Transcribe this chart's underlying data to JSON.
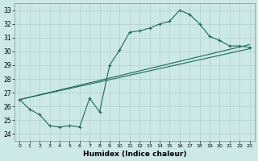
{
  "xlabel": "Humidex (Indice chaleur)",
  "bg_color": "#cce8e8",
  "grid_color": "#b0d0d0",
  "line_color": "#1a6b5a",
  "xlim": [
    -0.5,
    23.5
  ],
  "ylim": [
    23.5,
    33.5
  ],
  "xticks": [
    0,
    1,
    2,
    3,
    4,
    5,
    6,
    7,
    8,
    9,
    10,
    11,
    12,
    13,
    14,
    15,
    16,
    17,
    18,
    19,
    20,
    21,
    22,
    23
  ],
  "yticks": [
    24,
    25,
    26,
    27,
    28,
    29,
    30,
    31,
    32,
    33
  ],
  "series1_x": [
    0,
    1,
    2,
    3,
    4,
    5,
    6,
    7,
    8,
    9,
    10,
    11,
    12,
    13,
    14,
    15,
    16,
    17,
    18,
    19,
    20,
    21,
    22,
    23
  ],
  "series1_y": [
    26.5,
    25.8,
    25.4,
    24.6,
    24.5,
    24.6,
    24.5,
    26.6,
    25.6,
    29.0,
    30.1,
    31.4,
    31.5,
    31.7,
    32.0,
    32.2,
    33.0,
    32.7,
    32.0,
    31.1,
    30.8,
    30.4,
    30.4,
    30.3
  ],
  "series2_x": [
    0,
    23
  ],
  "series2_y": [
    26.5,
    30.5
  ],
  "series3_x": [
    0,
    23
  ],
  "series3_y": [
    26.5,
    30.2
  ]
}
